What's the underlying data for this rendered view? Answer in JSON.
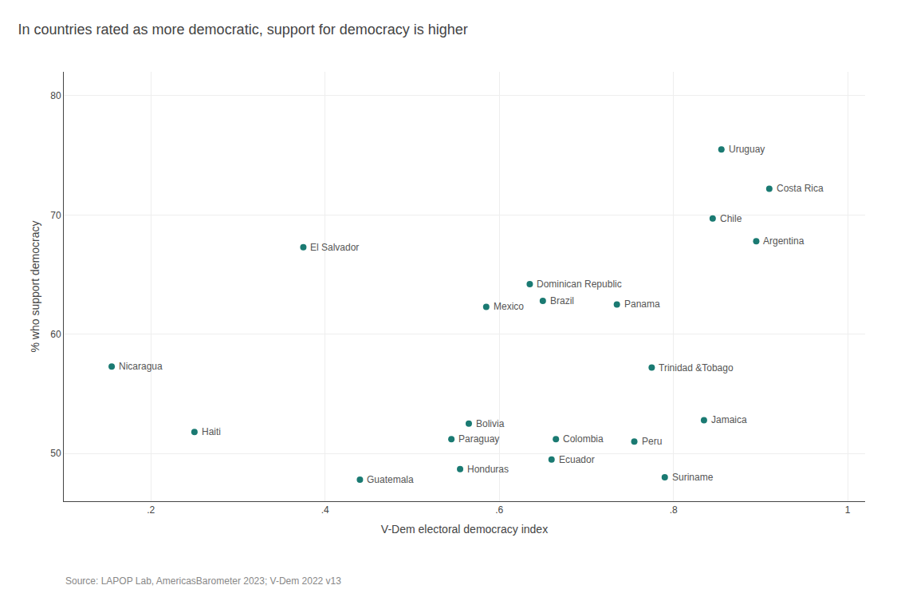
{
  "chart_data": {
    "type": "scatter",
    "title": "In countries rated as more democratic, support for democracy is higher",
    "xlabel": "V-Dem electoral democracy index",
    "ylabel": "% who support democracy",
    "annotations": [
      "Source: LAPOP Lab, AmericasBarometer 2023; V-Dem 2022 v13"
    ],
    "color": "#1a7a72",
    "labels": [
      "Nicaragua",
      "Haiti",
      "El Salvador",
      "Guatemala",
      "Paraguay",
      "Bolivia",
      "Honduras",
      "Mexico",
      "Dominican Republic",
      "Brazil",
      "Ecuador",
      "Colombia",
      "Panama",
      "Peru",
      "Trinidad &Tobago",
      "Suriname",
      "Jamaica",
      "Chile",
      "Uruguay",
      "Argentina",
      "Costa Rica"
    ],
    "x": [
      0.155,
      0.25,
      0.375,
      0.44,
      0.545,
      0.565,
      0.555,
      0.585,
      0.635,
      0.65,
      0.66,
      0.665,
      0.735,
      0.755,
      0.775,
      0.79,
      0.835,
      0.845,
      0.855,
      0.895,
      0.91
    ],
    "values": [
      57.3,
      51.8,
      67.3,
      47.8,
      51.2,
      52.5,
      48.7,
      62.3,
      64.2,
      62.8,
      49.5,
      51.2,
      62.5,
      51.0,
      57.2,
      48.0,
      52.8,
      69.7,
      75.5,
      67.8,
      72.2
    ],
    "xlim": [
      0.1,
      1.02
    ],
    "ylim": [
      46,
      82
    ],
    "xticks": [
      {
        "value": 0.2,
        "label": ".2"
      },
      {
        "value": 0.4,
        "label": ".4"
      },
      {
        "value": 0.6,
        "label": ".6"
      },
      {
        "value": 0.8,
        "label": ".8"
      },
      {
        "value": 1.0,
        "label": "1"
      }
    ],
    "yticks": [
      50,
      60,
      70,
      80
    ],
    "grid": true
  }
}
